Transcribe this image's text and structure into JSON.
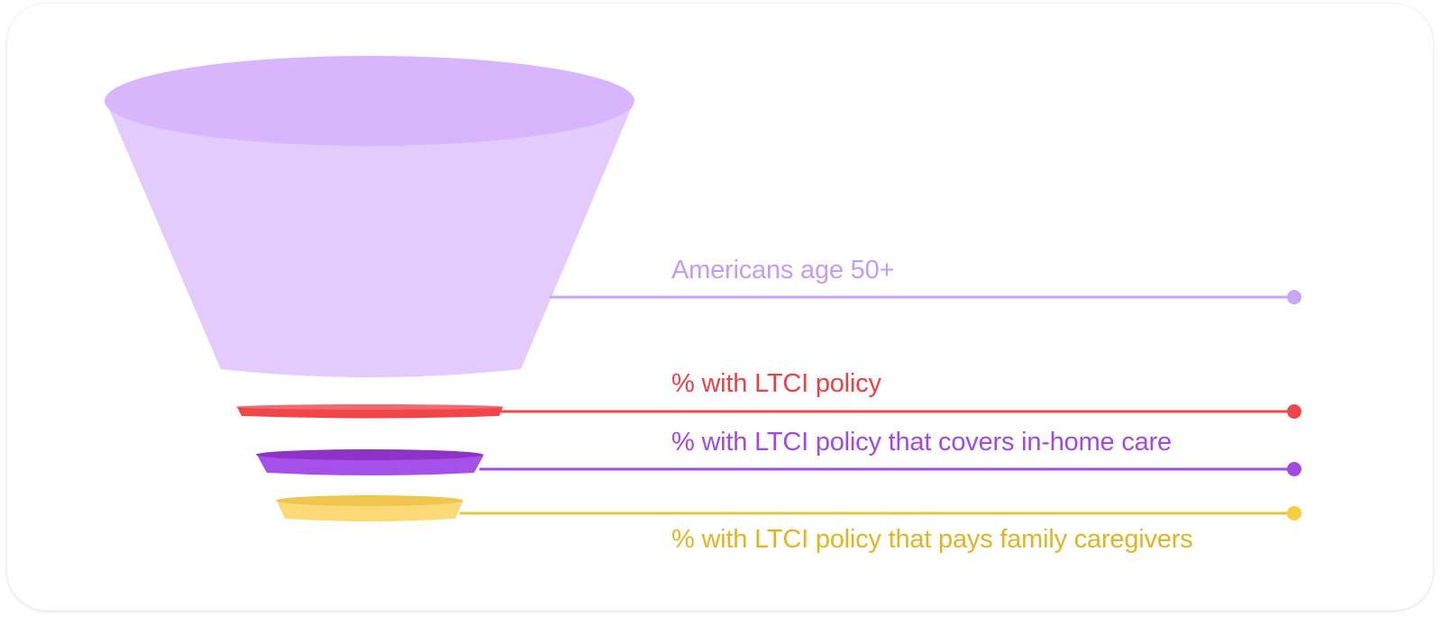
{
  "funnel": {
    "stages": [
      {
        "key": "americans",
        "label": "Americans age 50+",
        "color": "#c9a6f6"
      },
      {
        "key": "ltci",
        "label": "% with LTCI policy",
        "color": "#f0464a"
      },
      {
        "key": "in_home",
        "label": "% with LTCI policy that covers in-home care",
        "color": "#a348e3"
      },
      {
        "key": "caregivers",
        "label": "% with LTCI policy that pays family caregivers",
        "color": "#e8b82a"
      }
    ]
  }
}
